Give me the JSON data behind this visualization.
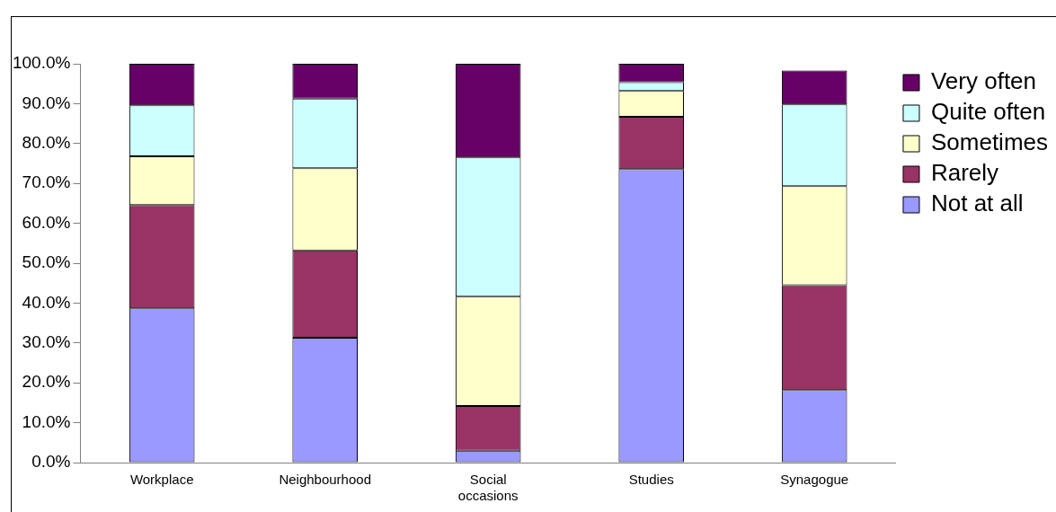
{
  "chart_data": {
    "type": "bar",
    "stacked": true,
    "categories": [
      "Workplace",
      "Neighbourhood",
      "Social occasions",
      "Studies",
      "Synagogue"
    ],
    "series": [
      {
        "name": "Not at all",
        "color": "#9999ff",
        "values": [
          38.7,
          31.3,
          3.0,
          73.6,
          18.2
        ]
      },
      {
        "name": "Rarely",
        "color": "#993366",
        "values": [
          25.9,
          21.9,
          11.2,
          13.1,
          26.3
        ]
      },
      {
        "name": "Sometimes",
        "color": "#ffffcc",
        "values": [
          12.2,
          20.6,
          27.4,
          6.5,
          24.8
        ]
      },
      {
        "name": "Quite often",
        "color": "#ccffff",
        "values": [
          12.8,
          17.5,
          34.9,
          2.2,
          20.5
        ]
      },
      {
        "name": "Very often",
        "color": "#660066",
        "values": [
          10.4,
          8.7,
          23.5,
          4.6,
          8.5
        ]
      }
    ],
    "ylim": [
      0,
      100
    ],
    "yticks": [
      {
        "value": 0,
        "label": "0.0%"
      },
      {
        "value": 10,
        "label": "10.0%"
      },
      {
        "value": 20,
        "label": "20.0%"
      },
      {
        "value": 30,
        "label": "30.0%"
      },
      {
        "value": 40,
        "label": "40.0%"
      },
      {
        "value": 50,
        "label": "50.0%"
      },
      {
        "value": 60,
        "label": "60.0%"
      },
      {
        "value": 70,
        "label": "70.0%"
      },
      {
        "value": 80,
        "label": "80.0%"
      },
      {
        "value": 90,
        "label": "90.0%"
      },
      {
        "value": 100,
        "label": "100.0%"
      }
    ],
    "grid": false,
    "legend": "right"
  }
}
